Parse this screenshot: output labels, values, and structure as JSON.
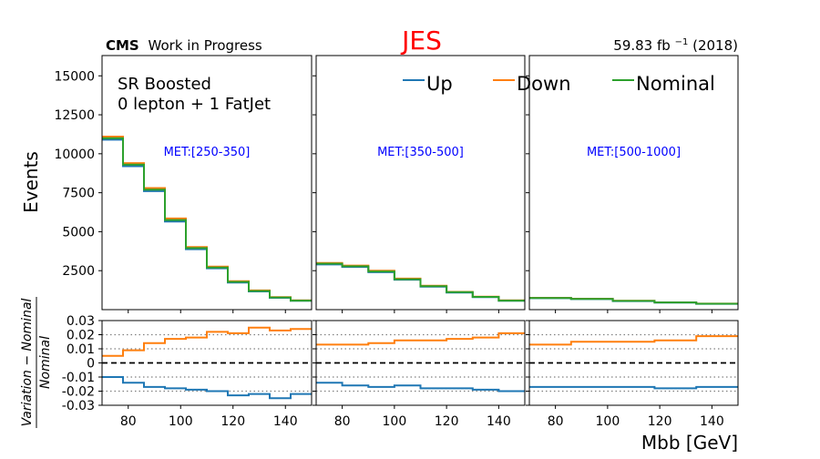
{
  "figure": {
    "title": "JES",
    "title_color": "#ff0000",
    "cms_label": "CMS",
    "wip_label": "Work in Progress",
    "lumi_label": "59.83 fb",
    "lumi_exp": "−1",
    "lumi_year": " (2018)",
    "region_line1": "SR Boosted",
    "region_line2": "0 lepton + 1 FatJet",
    "ylabel_top": "Events",
    "ylabel_bottom_num": "Variation − Nominal",
    "ylabel_bottom_den": "Nominal",
    "xlabel": "Mbb [GeV]"
  },
  "legend": [
    {
      "name": "Up",
      "color": "#1f77b4"
    },
    {
      "name": "Down",
      "color": "#ff7f0e"
    },
    {
      "name": "Nominal",
      "color": "#2ca02c"
    }
  ],
  "chart_data": {
    "type": "line",
    "top_yticks": [
      "2500",
      "5000",
      "7500",
      "10000",
      "12500",
      "15000"
    ],
    "top_ytick_values": [
      2500,
      5000,
      7500,
      10000,
      12500,
      15000
    ],
    "top_ylim": [
      0,
      16300
    ],
    "ratio_yticks": [
      "0.03",
      "0.02",
      "0.01",
      "0",
      "-0.01",
      "-0.02",
      "-0.03"
    ],
    "ratio_ytick_values": [
      0.03,
      0.02,
      0.01,
      0,
      -0.01,
      -0.02,
      -0.03
    ],
    "ratio_ylim": [
      -0.03,
      0.03
    ],
    "xticks": [
      "80",
      "100",
      "120",
      "140"
    ],
    "xtick_values": [
      80,
      100,
      120,
      140
    ],
    "xlim": [
      70,
      150
    ],
    "panels": [
      {
        "label": "MET:[250-350]",
        "edges": [
          70,
          78,
          86,
          94,
          102,
          110,
          118,
          126,
          134,
          142,
          150
        ],
        "nominal": [
          11000,
          9300,
          7700,
          5750,
          3950,
          2700,
          1780,
          1200,
          780,
          580
        ],
        "up": [
          10900,
          9200,
          7600,
          5650,
          3880,
          2650,
          1740,
          1170,
          760,
          570
        ],
        "down": [
          11100,
          9400,
          7800,
          5850,
          4020,
          2760,
          1820,
          1230,
          800,
          595
        ],
        "ratio_up": [
          -0.01,
          -0.014,
          -0.017,
          -0.018,
          -0.019,
          -0.02,
          -0.023,
          -0.022,
          -0.025,
          -0.022
        ],
        "ratio_down": [
          0.005,
          0.009,
          0.014,
          0.017,
          0.018,
          0.022,
          0.021,
          0.025,
          0.023,
          0.024
        ]
      },
      {
        "label": "MET:[350-500]",
        "edges": [
          70,
          80,
          90,
          100,
          110,
          120,
          130,
          140,
          150
        ],
        "nominal": [
          2950,
          2780,
          2450,
          1950,
          1500,
          1120,
          820,
          580
        ],
        "up": [
          2900,
          2740,
          2400,
          1920,
          1470,
          1100,
          805,
          570
        ],
        "down": [
          3000,
          2830,
          2500,
          1990,
          1530,
          1140,
          835,
          595
        ],
        "ratio_up": [
          -0.014,
          -0.016,
          -0.017,
          -0.016,
          -0.018,
          -0.018,
          -0.019,
          -0.02
        ],
        "ratio_down": [
          0.013,
          0.013,
          0.014,
          0.016,
          0.016,
          0.017,
          0.018,
          0.021
        ]
      },
      {
        "label": "MET:[500-1000]",
        "edges": [
          70,
          86,
          102,
          118,
          134,
          150
        ],
        "nominal": [
          750,
          690,
          560,
          460,
          380
        ],
        "up": [
          738,
          678,
          550,
          452,
          374
        ],
        "down": [
          760,
          700,
          568,
          467,
          387
        ],
        "ratio_up": [
          -0.017,
          -0.017,
          -0.017,
          -0.018,
          -0.017
        ],
        "ratio_down": [
          0.013,
          0.015,
          0.015,
          0.016,
          0.019
        ]
      }
    ],
    "ratio_reference_lines": [
      0.02,
      0.01,
      -0.01,
      -0.02
    ],
    "grid": false,
    "legend_position": "top"
  }
}
